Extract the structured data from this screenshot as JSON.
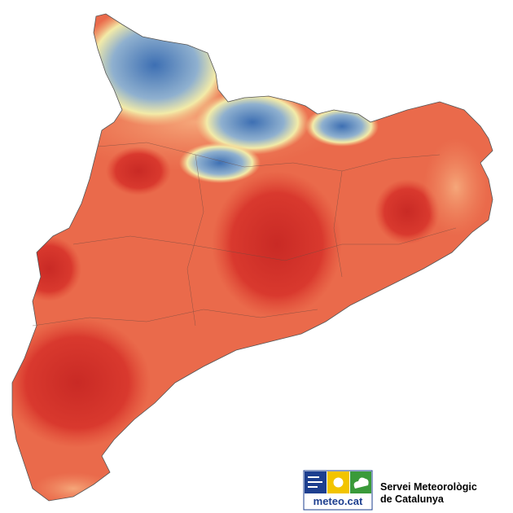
{
  "logo": {
    "site": "meteo.cat",
    "name_line1": "Servei Meteorològic",
    "name_line2": "de Catalunya"
  }
}
